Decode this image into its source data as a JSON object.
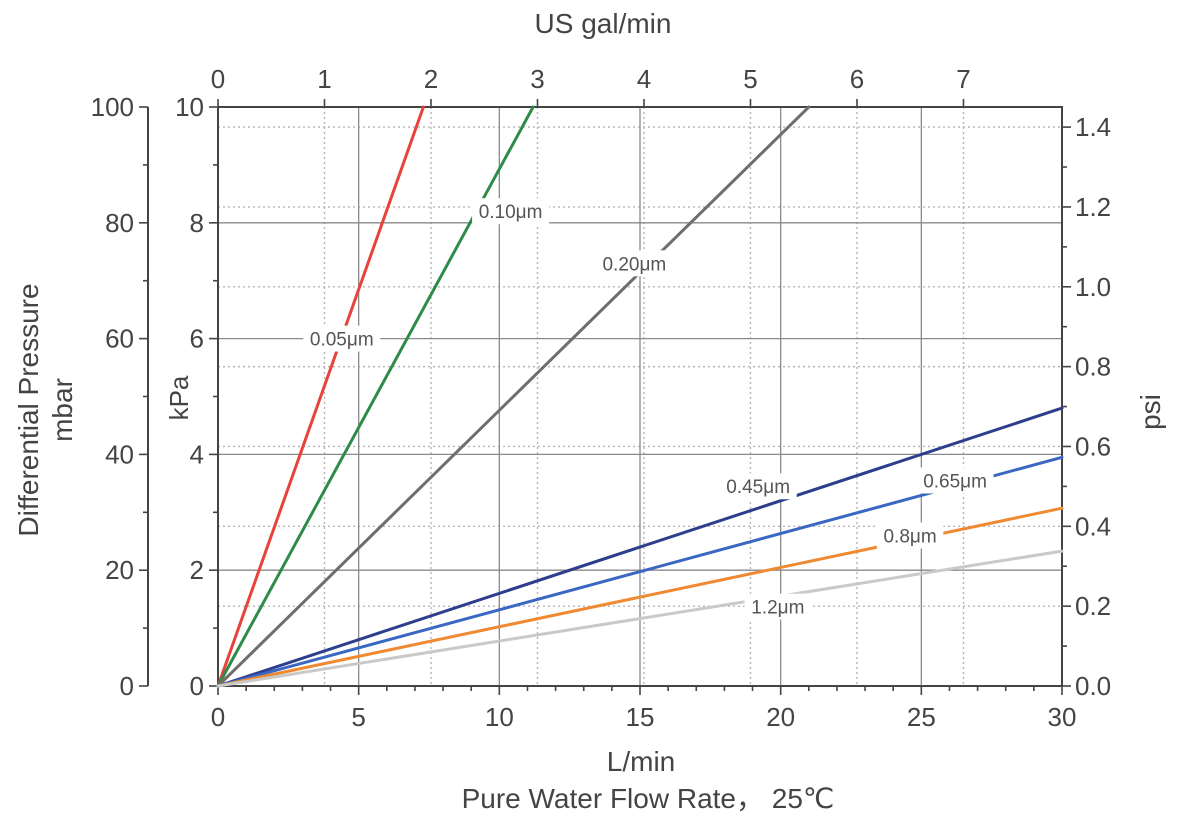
{
  "chart_data": {
    "type": "line",
    "top_axis": {
      "label": "US gal/min",
      "ticks": [
        "0",
        "1",
        "2",
        "3",
        "4",
        "5",
        "6",
        "7"
      ],
      "tick_values": [
        0,
        1,
        2,
        3,
        4,
        5,
        6,
        7
      ]
    },
    "bottom_axis": {
      "label": "L/min",
      "ticks": [
        "0",
        "5",
        "10",
        "15",
        "20",
        "25",
        "30"
      ],
      "tick_values": [
        0,
        5,
        10,
        15,
        20,
        25,
        30
      ],
      "xlim": [
        0,
        30
      ]
    },
    "caption": "Pure Water Flow Rate， 25℃",
    "left_mbar_axis": {
      "label_line1": "Differential Pressure",
      "label_line2": "mbar",
      "ticks": [
        "0",
        "20",
        "40",
        "60",
        "80",
        "100"
      ],
      "tick_values": [
        0,
        20,
        40,
        60,
        80,
        100
      ]
    },
    "left_kpa_axis": {
      "label": "kPa",
      "ticks": [
        "0",
        "2",
        "4",
        "6",
        "8",
        "10"
      ],
      "tick_values": [
        0,
        2,
        4,
        6,
        8,
        10
      ],
      "ylim": [
        0,
        10
      ]
    },
    "right_psi_axis": {
      "label": "psi",
      "ticks": [
        "0.0",
        "0.2",
        "0.4",
        "0.6",
        "0.8",
        "1.0",
        "1.2",
        "1.4"
      ],
      "tick_values": [
        0,
        0.2,
        0.4,
        0.6,
        0.8,
        1.0,
        1.2,
        1.4
      ]
    },
    "grid": true,
    "series": [
      {
        "name": "0.05μm",
        "color": "#e8423b",
        "x": [
          0,
          7.3
        ],
        "y": [
          0,
          10
        ]
      },
      {
        "name": "0.10μm",
        "color": "#2e8b4a",
        "x": [
          0,
          11.2
        ],
        "y": [
          0,
          10
        ]
      },
      {
        "name": "0.20μm",
        "color": "#6e6e6e",
        "x": [
          0,
          21.0
        ],
        "y": [
          0,
          10
        ]
      },
      {
        "name": "0.45μm",
        "color": "#2c3e8c",
        "x": [
          0,
          30
        ],
        "y": [
          0,
          4.8
        ]
      },
      {
        "name": "0.65μm",
        "color": "#3a67c2",
        "x": [
          0,
          30
        ],
        "y": [
          0,
          3.95
        ]
      },
      {
        "name": "0.8μm",
        "color": "#ef8a32",
        "x": [
          0,
          30
        ],
        "y": [
          0,
          3.07
        ]
      },
      {
        "name": "1.2μm",
        "color": "#c9c9c9",
        "x": [
          0,
          30
        ],
        "y": [
          0,
          2.33
        ]
      }
    ],
    "annotations": [
      {
        "text": "0.05μm",
        "x": 4.4,
        "y": 6.0
      },
      {
        "text": "0.10μm",
        "x": 10.4,
        "y": 8.2
      },
      {
        "text": "0.20μm",
        "x": 14.8,
        "y": 7.3
      },
      {
        "text": "0.45μm",
        "x": 19.2,
        "y": 3.45
      },
      {
        "text": "0.65μm",
        "x": 26.2,
        "y": 3.55
      },
      {
        "text": "0.8μm",
        "x": 24.6,
        "y": 2.6
      },
      {
        "text": "1.2μm",
        "x": 19.9,
        "y": 1.37
      }
    ]
  }
}
